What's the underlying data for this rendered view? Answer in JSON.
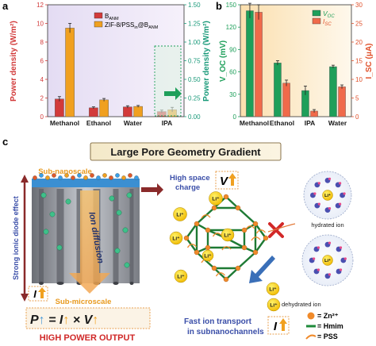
{
  "panel_labels": {
    "a": "a",
    "b": "b",
    "c": "c"
  },
  "colors": {
    "panel_a_bg": "#e6e0f2",
    "panel_a_bg2": "#f5f0fb",
    "panel_b_bg": "#fbe3b8",
    "panel_b_bg2": "#fdf6e6",
    "red": "#d23a3a",
    "orange": "#f0a020",
    "green": "#1e9f5a",
    "teal": "#1a9a7a"
  },
  "chart_data": [
    {
      "type": "bar",
      "categories": [
        "Methanol",
        "Ethanol",
        "Water",
        "IPA"
      ],
      "series": [
        {
          "name": "B_ANM",
          "values": [
            1.9,
            0.95,
            1.05,
            0.55
          ],
          "errors": [
            0.25,
            0.1,
            0.12,
            0.15
          ]
        },
        {
          "name": "ZIF-8/PSS_in@B_ANM",
          "values": [
            9.5,
            1.8,
            1.1,
            0.75
          ],
          "errors": [
            0.5,
            0.15,
            0.1,
            0.25
          ]
        }
      ],
      "ylabel": "Power density (W/m²)",
      "ylim": [
        0,
        12
      ],
      "yticks": [
        0,
        2,
        4,
        6,
        8,
        10,
        12
      ],
      "y2label": "Power density (W/m²)",
      "y2lim": [
        0,
        1.5
      ],
      "y2ticks": [
        "0.00",
        "0.25",
        "0.50",
        "0.75",
        "1.00",
        "1.25",
        "1.50"
      ],
      "legend": [
        "B",
        "ZIF-8/PSS",
        "@B"
      ],
      "legend_sub": [
        "ANM",
        "in",
        "ANM"
      ]
    },
    {
      "type": "bar",
      "categories": [
        "Methanol",
        "Ethanol",
        "IPA",
        "Water"
      ],
      "series": [
        {
          "name": "V_OC",
          "values": [
            142,
            72,
            35,
            67
          ],
          "errors": [
            10,
            3,
            6,
            2
          ]
        },
        {
          "name": "I_SC",
          "values": [
            28,
            9,
            1.5,
            8
          ],
          "errors": [
            2,
            0.8,
            0.4,
            0.5
          ]
        }
      ],
      "ylabel": "V_OC (mV)",
      "ylim": [
        0,
        150
      ],
      "yticks": [
        0,
        30,
        60,
        90,
        120,
        150
      ],
      "y2label": "I_SC (μA)",
      "y2lim": [
        0,
        30
      ],
      "y2ticks": [
        0,
        5,
        10,
        15,
        20,
        25,
        30
      ],
      "legend": [
        "V",
        "I"
      ],
      "legend_sub": [
        "OC",
        "SC"
      ]
    }
  ],
  "diagram": {
    "title": "Large Pore Geometry Gradient",
    "sub_nanoscale": "Sub-nanoscale",
    "sub_microscale": "Sub-microscale",
    "left_vertical": "Strong ionic diode effect",
    "ion_diffusion": "Ion diffusion",
    "high_space_charge": [
      "High space",
      "charge"
    ],
    "hydrated_ion": "hydrated ion",
    "dehydrated_ion": "dehydrated ion",
    "fast_transport": [
      "Fast ion transport",
      "in subnanochannels"
    ],
    "high_power_output": "HIGH POWER OUTPUT",
    "equation": "P = I × V",
    "current_symbol": "I",
    "voltage_symbol": "V",
    "li_label": "Li⁺",
    "legend_items": [
      "= Zn²⁺",
      "= Hmim",
      "= PSS"
    ]
  }
}
